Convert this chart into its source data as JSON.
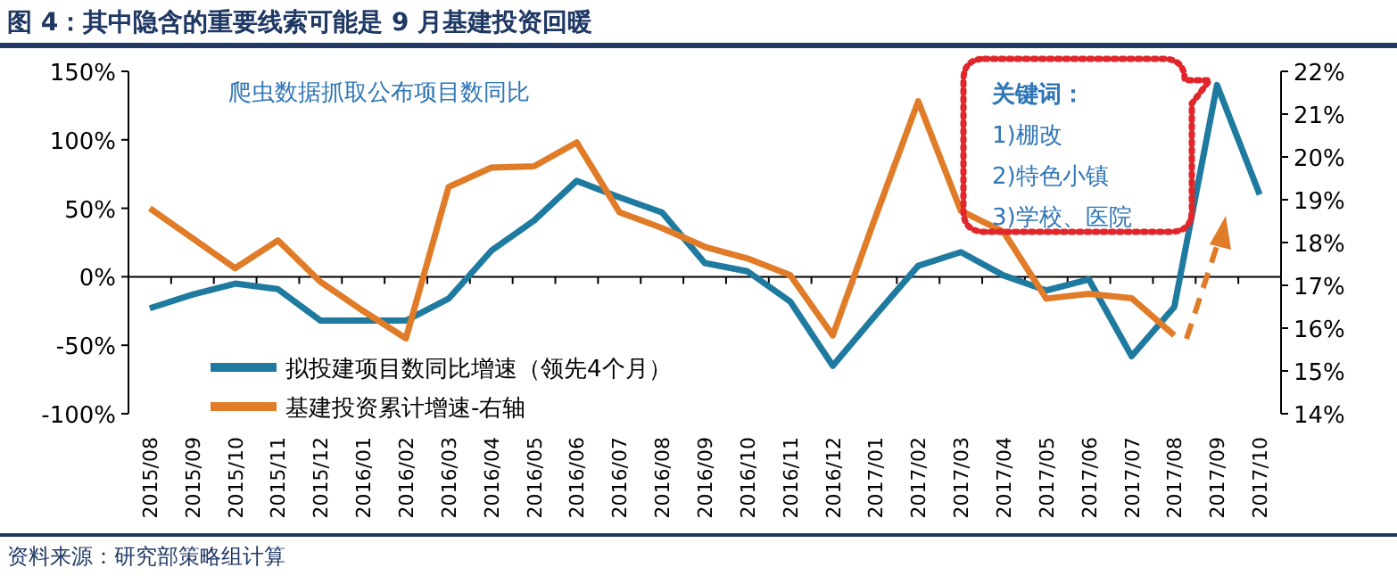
{
  "chart_data": {
    "type": "line",
    "title": "图 4：其中隐含的重要线索可能是 9 月基建投资回暖",
    "categories": [
      "2015/08",
      "2015/09",
      "2015/10",
      "2015/11",
      "2015/12",
      "2016/01",
      "2016/02",
      "2016/03",
      "2016/04",
      "2016/05",
      "2016/06",
      "2016/07",
      "2016/08",
      "2016/09",
      "2016/10",
      "2016/11",
      "2016/12",
      "2017/01",
      "2017/02",
      "2017/03",
      "2017/04",
      "2017/05",
      "2017/06",
      "2017/07",
      "2017/08",
      "2017/09",
      "2017/10"
    ],
    "series": [
      {
        "name": "拟投建项目数同比增速（领先4个月）",
        "color": "#1f7aa0",
        "values": [
          -23,
          -13,
          -5,
          -9,
          -32,
          -32,
          -32,
          -16,
          19,
          41,
          70,
          58,
          47,
          10,
          4,
          -18,
          -65,
          -28,
          8,
          18,
          1,
          -10,
          -2,
          -58,
          -22,
          140,
          60
        ]
      },
      {
        "name": "基建投资累计增速-右轴",
        "color": "#e07b28",
        "axis": "y2",
        "values": [
          18.8,
          18.1,
          17.4,
          18.05,
          17.08,
          16.4,
          15.76,
          19.3,
          19.75,
          19.78,
          20.34,
          18.71,
          18.34,
          17.9,
          17.63,
          17.24,
          15.83,
          18.6,
          21.3,
          18.74,
          18.25,
          16.69,
          16.8,
          16.7,
          15.83,
          null,
          null
        ]
      }
    ],
    "ylim": [
      -100,
      150
    ],
    "yticks": [
      {
        "value": -100,
        "label": "-100%"
      },
      {
        "value": -50,
        "label": "-50%"
      },
      {
        "value": 0,
        "label": "0%"
      },
      {
        "value": 50,
        "label": "50%"
      },
      {
        "value": 100,
        "label": "100%"
      },
      {
        "value": 150,
        "label": "150%"
      }
    ],
    "y2lim": [
      14,
      22
    ],
    "y2ticks": [
      {
        "value": 14,
        "label": "14%"
      },
      {
        "value": 15,
        "label": "15%"
      },
      {
        "value": 16,
        "label": "16%"
      },
      {
        "value": 17,
        "label": "17%"
      },
      {
        "value": 18,
        "label": "18%"
      },
      {
        "value": 19,
        "label": "19%"
      },
      {
        "value": 20,
        "label": "20%"
      },
      {
        "value": 21,
        "label": "21%"
      },
      {
        "value": 22,
        "label": "22%"
      }
    ],
    "legend": "bottom left",
    "marker": "none",
    "line_style": "solid",
    "annotations": [
      "爬虫数据抓取公布项目数同比",
      "关键词：",
      "1)棚改",
      "2)特色小镇",
      "3)学校、医院",
      "资料来源：研究部策略组计算"
    ]
  }
}
